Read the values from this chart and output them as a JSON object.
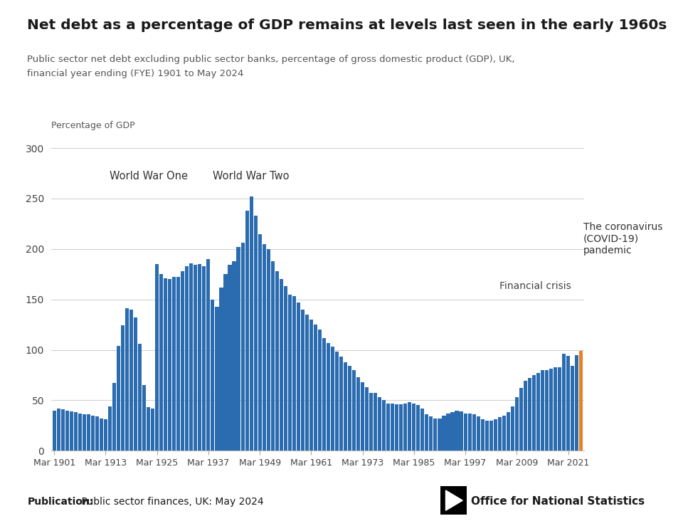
{
  "title": "Net debt as a percentage of GDP remains at levels last seen in the early 1960s",
  "subtitle_line1": "Public sector net debt excluding public sector banks, percentage of gross domestic product (GDP), UK,",
  "subtitle_line2": "financial year ending (FYE) 1901 to May 2024",
  "ylabel": "Percentage of GDP",
  "publication_bold": "Publication:",
  "publication_normal": " Public sector finances, UK: May 2024",
  "background_color": "#ffffff",
  "bar_color": "#2b6cb0",
  "highlight_color": "#e8821e",
  "annotation_ww1": "World War One",
  "annotation_ww2": "World War Two",
  "annotation_financial": "Financial crisis",
  "annotation_covid": "The coronavirus\n(COVID-19)\npandemic",
  "years": [
    1901,
    1902,
    1903,
    1904,
    1905,
    1906,
    1907,
    1908,
    1909,
    1910,
    1911,
    1912,
    1913,
    1914,
    1915,
    1916,
    1917,
    1918,
    1919,
    1920,
    1921,
    1922,
    1923,
    1924,
    1925,
    1926,
    1927,
    1928,
    1929,
    1930,
    1931,
    1932,
    1933,
    1934,
    1935,
    1936,
    1937,
    1938,
    1939,
    1940,
    1941,
    1942,
    1943,
    1944,
    1945,
    1946,
    1947,
    1948,
    1949,
    1950,
    1951,
    1952,
    1953,
    1954,
    1955,
    1956,
    1957,
    1958,
    1959,
    1960,
    1961,
    1962,
    1963,
    1964,
    1965,
    1966,
    1967,
    1968,
    1969,
    1970,
    1971,
    1972,
    1973,
    1974,
    1975,
    1976,
    1977,
    1978,
    1979,
    1980,
    1981,
    1982,
    1983,
    1984,
    1985,
    1986,
    1987,
    1988,
    1989,
    1990,
    1991,
    1992,
    1993,
    1994,
    1995,
    1996,
    1997,
    1998,
    1999,
    2000,
    2001,
    2002,
    2003,
    2004,
    2005,
    2006,
    2007,
    2008,
    2009,
    2010,
    2011,
    2012,
    2013,
    2014,
    2015,
    2016,
    2017,
    2018,
    2019,
    2020,
    2021,
    2022,
    2023,
    2024
  ],
  "values": [
    40,
    42,
    41,
    40,
    39,
    38,
    37,
    36,
    36,
    35,
    34,
    32,
    31,
    44,
    67,
    104,
    124,
    141,
    140,
    132,
    106,
    65,
    43,
    42,
    185,
    175,
    171,
    170,
    172,
    172,
    178,
    183,
    186,
    184,
    185,
    183,
    190,
    150,
    143,
    162,
    175,
    184,
    188,
    202,
    206,
    238,
    252,
    233,
    215,
    205,
    200,
    188,
    178,
    170,
    163,
    155,
    153,
    147,
    140,
    135,
    130,
    125,
    120,
    112,
    107,
    103,
    98,
    93,
    88,
    84,
    80,
    73,
    68,
    63,
    57,
    57,
    53,
    50,
    47,
    47,
    46,
    46,
    47,
    48,
    47,
    45,
    42,
    36,
    34,
    32,
    32,
    35,
    37,
    38,
    40,
    39,
    37,
    37,
    36,
    34,
    31,
    30,
    30,
    31,
    33,
    35,
    38,
    44,
    53,
    62,
    69,
    72,
    75,
    77,
    80,
    80,
    81,
    83,
    83,
    96,
    94,
    84,
    95,
    99
  ],
  "highlight_year": 2024,
  "ylim": [
    0,
    310
  ],
  "yticks": [
    0,
    50,
    100,
    150,
    200,
    250,
    300
  ],
  "tick_years": [
    1901,
    1913,
    1925,
    1937,
    1949,
    1961,
    1973,
    1985,
    1997,
    2009,
    2021
  ]
}
